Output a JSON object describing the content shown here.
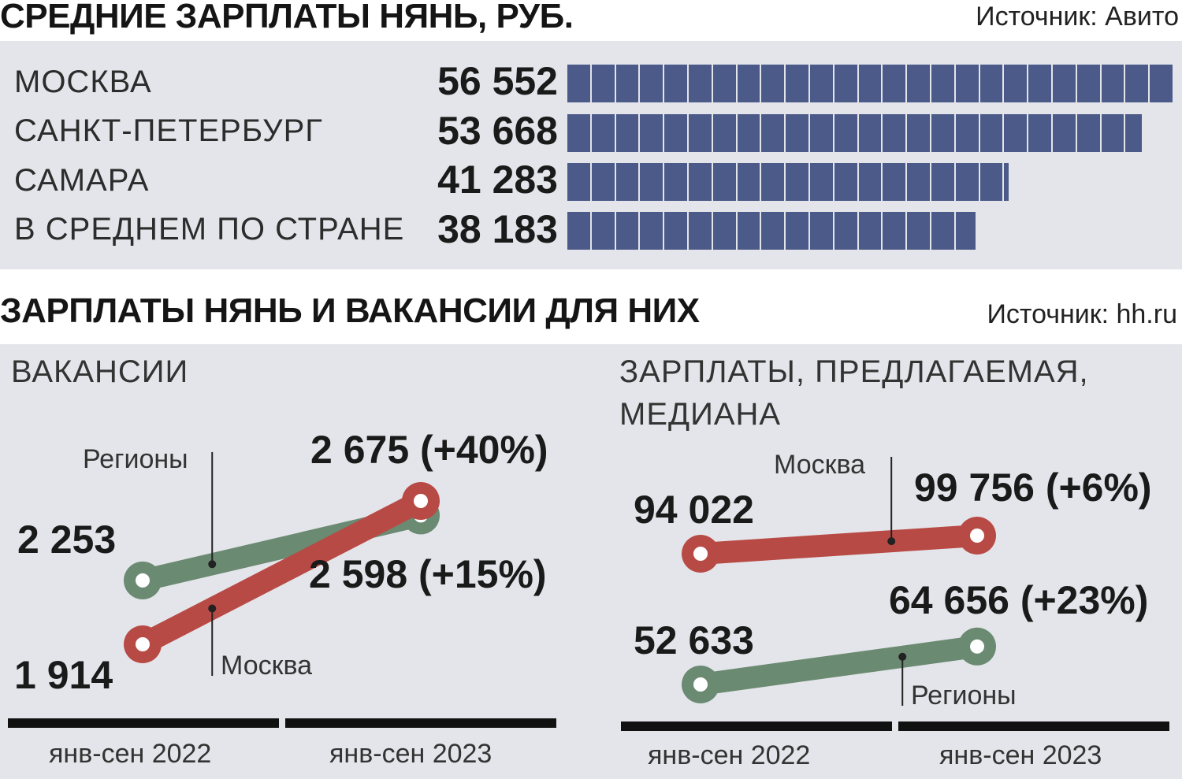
{
  "chart_data": [
    {
      "type": "bar",
      "title": "СРЕДНИЕ ЗАРПЛАТЫ НЯНЬ, РУБ.",
      "source": "Источник: Авито",
      "categories": [
        "МОСКВА",
        "САНКТ-ПЕТЕРБУРГ",
        "САМАРА",
        "В СРЕДНЕМ ПО СТРАНЕ"
      ],
      "values": [
        56552,
        53668,
        41283,
        38183
      ],
      "value_labels": [
        "56 552",
        "53 668",
        "41 283",
        "38 183"
      ],
      "color": "#4b5a88"
    },
    {
      "type": "line",
      "title": "ЗАРПЛАТЫ НЯНЬ И ВАКАНСИИ ДЛЯ НИХ",
      "source": "Источник: hh.ru",
      "subtitle": "ВАКАНСИИ",
      "categories": [
        "янв-сен 2022",
        "янв-сен 2023"
      ],
      "series": [
        {
          "name": "Регионы",
          "values": [
            2253,
            2598
          ],
          "labels": [
            "2 253",
            "2 598 (+15%)"
          ],
          "color": "#6b8a72"
        },
        {
          "name": "Москва",
          "values": [
            1914,
            2675
          ],
          "labels": [
            "1 914",
            "2 675 (+40%)"
          ],
          "color": "#b84a45"
        }
      ]
    },
    {
      "type": "line",
      "subtitle_line1": "ЗАРПЛАТЫ, ПРЕДЛАГАЕМАЯ,",
      "subtitle_line2": "МЕДИАНА",
      "categories": [
        "янв-сен 2022",
        "янв-сен 2023"
      ],
      "series": [
        {
          "name": "Москва",
          "values": [
            94022,
            99756
          ],
          "labels": [
            "94 022",
            "99 756 (+6%)"
          ],
          "color": "#b84a45"
        },
        {
          "name": "Регионы",
          "values": [
            52633,
            64656
          ],
          "labels": [
            "52 633",
            "64 656 (+23%)"
          ],
          "color": "#6b8a72"
        }
      ]
    }
  ]
}
